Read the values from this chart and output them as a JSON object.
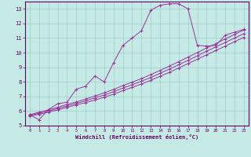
{
  "title": "",
  "xlabel": "Windchill (Refroidissement éolien,°C)",
  "ylabel": "",
  "bg_color": "#c5eae6",
  "plot_bg_color": "#c5eae6",
  "grid_color": "#9ecec9",
  "line_color": "#993399",
  "xlim": [
    -0.5,
    23.5
  ],
  "ylim": [
    5.0,
    13.5
  ],
  "yticks": [
    5,
    6,
    7,
    8,
    9,
    10,
    11,
    12,
    13
  ],
  "xticks": [
    0,
    1,
    2,
    3,
    4,
    5,
    6,
    7,
    8,
    9,
    10,
    11,
    12,
    13,
    14,
    15,
    16,
    17,
    18,
    19,
    20,
    21,
    22,
    23
  ],
  "series": [
    {
      "x": [
        0,
        1,
        2,
        3,
        4,
        5,
        6,
        7,
        8,
        9,
        10,
        11,
        12,
        13,
        14,
        15,
        16,
        17,
        18,
        19,
        20,
        21,
        22,
        23
      ],
      "y": [
        5.75,
        5.4,
        6.1,
        6.5,
        6.6,
        7.5,
        7.7,
        8.4,
        8.0,
        9.3,
        10.5,
        11.0,
        11.5,
        12.9,
        13.25,
        13.35,
        13.35,
        13.0,
        10.5,
        10.45,
        10.5,
        11.2,
        11.4,
        11.6
      ]
    },
    {
      "x": [
        0,
        1,
        2,
        3,
        4,
        5,
        6,
        7,
        8,
        9,
        10,
        11,
        12,
        13,
        14,
        15,
        16,
        17,
        18,
        19,
        20,
        21,
        22,
        23
      ],
      "y": [
        5.65,
        5.78,
        5.92,
        6.08,
        6.25,
        6.42,
        6.58,
        6.75,
        6.95,
        7.15,
        7.4,
        7.62,
        7.85,
        8.1,
        8.38,
        8.65,
        8.95,
        9.25,
        9.55,
        9.85,
        10.15,
        10.45,
        10.75,
        11.05
      ]
    },
    {
      "x": [
        0,
        1,
        2,
        3,
        4,
        5,
        6,
        7,
        8,
        9,
        10,
        11,
        12,
        13,
        14,
        15,
        16,
        17,
        18,
        19,
        20,
        21,
        22,
        23
      ],
      "y": [
        5.7,
        5.85,
        6.0,
        6.17,
        6.35,
        6.52,
        6.7,
        6.9,
        7.1,
        7.32,
        7.57,
        7.8,
        8.04,
        8.3,
        8.58,
        8.87,
        9.17,
        9.47,
        9.78,
        10.1,
        10.4,
        10.7,
        11.0,
        11.3
      ]
    },
    {
      "x": [
        0,
        1,
        2,
        3,
        4,
        5,
        6,
        7,
        8,
        9,
        10,
        11,
        12,
        13,
        14,
        15,
        16,
        17,
        18,
        19,
        20,
        21,
        22,
        23
      ],
      "y": [
        5.75,
        5.92,
        6.08,
        6.26,
        6.45,
        6.62,
        6.82,
        7.03,
        7.25,
        7.48,
        7.74,
        7.98,
        8.22,
        8.5,
        8.78,
        9.08,
        9.38,
        9.69,
        10.0,
        10.32,
        10.62,
        10.94,
        11.25,
        11.55
      ]
    }
  ]
}
